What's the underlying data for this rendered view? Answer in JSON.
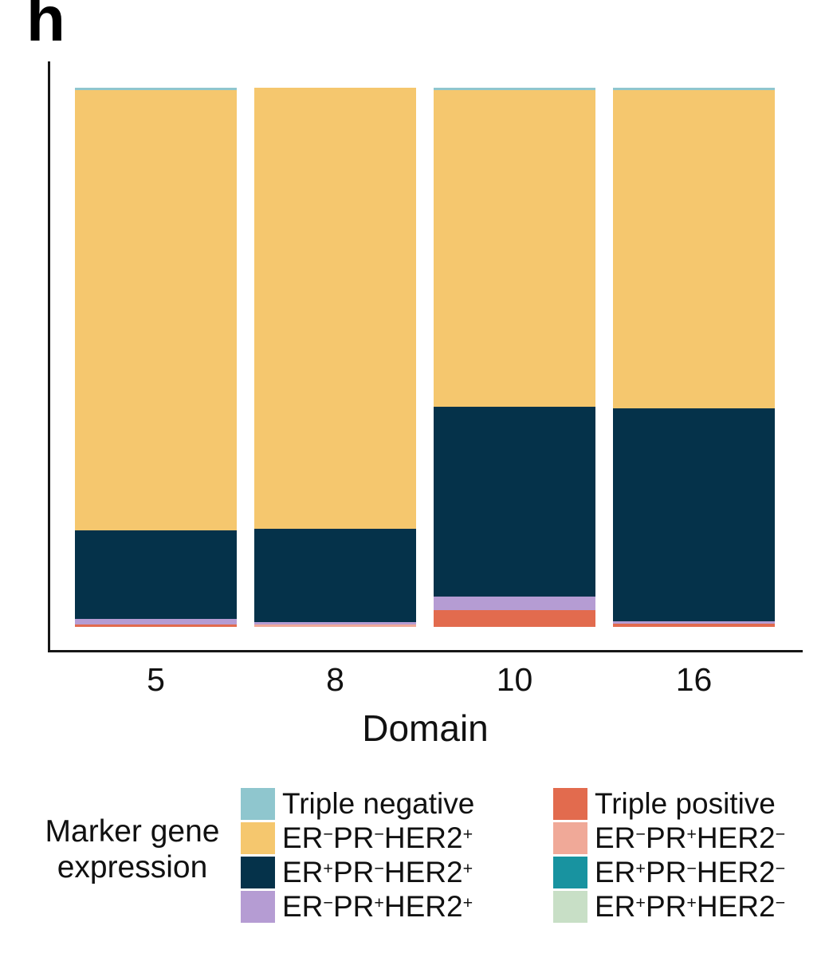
{
  "panel_label": "h",
  "colors": {
    "triple_negative": "#8FC6CE",
    "er_neg_pr_neg_her2_pos": "#F5C76E",
    "er_pos_pr_neg_her2_pos": "#05324A",
    "er_neg_pr_pos_her2_pos": "#B59CD3",
    "triple_positive": "#E26B4E",
    "er_neg_pr_pos_her2_neg": "#F0A998",
    "er_pos_pr_neg_her2_neg": "#1893A0",
    "er_pos_pr_pos_her2_neg": "#C8DFC6",
    "axis_line": "#161616"
  },
  "axis": {
    "xlabel": "Domain",
    "tick_labels": [
      "5",
      "8",
      "10",
      "16"
    ]
  },
  "legend": {
    "title_lines": [
      "Marker gene",
      "expression"
    ],
    "columns": [
      [
        {
          "key": "triple_negative",
          "parts": [
            [
              "Triple negative",
              0
            ]
          ]
        },
        {
          "key": "er_neg_pr_neg_her2_pos",
          "parts": [
            [
              "ER",
              0
            ],
            [
              "−",
              1
            ],
            [
              "PR",
              0
            ],
            [
              "−",
              1
            ],
            [
              "HER2",
              0
            ],
            [
              "+",
              1
            ]
          ]
        },
        {
          "key": "er_pos_pr_neg_her2_pos",
          "parts": [
            [
              "ER",
              0
            ],
            [
              "+",
              1
            ],
            [
              "PR",
              0
            ],
            [
              "−",
              1
            ],
            [
              "HER2",
              0
            ],
            [
              "+",
              1
            ]
          ]
        },
        {
          "key": "er_neg_pr_pos_her2_pos",
          "parts": [
            [
              "ER",
              0
            ],
            [
              "−",
              1
            ],
            [
              "PR",
              0
            ],
            [
              "+",
              1
            ],
            [
              "HER2",
              0
            ],
            [
              "+",
              1
            ]
          ]
        }
      ],
      [
        {
          "key": "triple_positive",
          "parts": [
            [
              "Triple positive",
              0
            ]
          ]
        },
        {
          "key": "er_neg_pr_pos_her2_neg",
          "parts": [
            [
              "ER",
              0
            ],
            [
              "−",
              1
            ],
            [
              "PR",
              0
            ],
            [
              "+",
              1
            ],
            [
              "HER2",
              0
            ],
            [
              "−",
              1
            ]
          ]
        },
        {
          "key": "er_pos_pr_neg_her2_neg",
          "parts": [
            [
              "ER",
              0
            ],
            [
              "+",
              1
            ],
            [
              "PR",
              0
            ],
            [
              "−",
              1
            ],
            [
              "HER2",
              0
            ],
            [
              "−",
              1
            ]
          ]
        },
        {
          "key": "er_pos_pr_pos_her2_neg",
          "parts": [
            [
              "ER",
              0
            ],
            [
              "+",
              1
            ],
            [
              "PR",
              0
            ],
            [
              "+",
              1
            ],
            [
              "HER2",
              0
            ],
            [
              "−",
              1
            ]
          ]
        }
      ]
    ]
  },
  "chart_data": {
    "type": "bar",
    "stacked": true,
    "orientation": "vertical",
    "categories": [
      "5",
      "8",
      "10",
      "16"
    ],
    "xlabel": "Domain",
    "ylabel": "",
    "ylim": [
      0,
      100
    ],
    "unit": "percent of stack",
    "legend_title": "Marker gene expression",
    "legend_entries": [
      "Triple negative",
      "ER−PR−HER2+",
      "ER+PR−HER2+",
      "ER−PR+HER2+",
      "Triple positive",
      "ER−PR+HER2−",
      "ER+PR−HER2−",
      "ER+PR+HER2−"
    ],
    "bars": [
      {
        "category": "5",
        "segments_top_to_bottom": [
          {
            "key": "triple_negative",
            "label": "Triple negative",
            "value": 0.5
          },
          {
            "key": "er_neg_pr_neg_her2_pos",
            "label": "ER−PR−HER2+",
            "value": 81.6
          },
          {
            "key": "er_pos_pr_neg_her2_pos",
            "label": "ER+PR−HER2+",
            "value": 16.4
          },
          {
            "key": "er_neg_pr_pos_her2_pos",
            "label": "ER−PR+HER2+",
            "value": 1.0
          },
          {
            "key": "triple_positive",
            "label": "Triple positive",
            "value": 0.5
          }
        ]
      },
      {
        "category": "8",
        "segments_top_to_bottom": [
          {
            "key": "er_neg_pr_neg_her2_pos",
            "label": "ER−PR−HER2+",
            "value": 81.8
          },
          {
            "key": "er_pos_pr_neg_her2_pos",
            "label": "ER+PR−HER2+",
            "value": 17.3
          },
          {
            "key": "er_neg_pr_pos_her2_pos",
            "label": "ER−PR+HER2+",
            "value": 0.45
          },
          {
            "key": "er_neg_pr_pos_her2_neg",
            "label": "ER−PR+HER2−",
            "value": 0.45
          }
        ]
      },
      {
        "category": "10",
        "segments_top_to_bottom": [
          {
            "key": "triple_negative",
            "label": "Triple negative",
            "value": 0.45
          },
          {
            "key": "er_neg_pr_neg_her2_pos",
            "label": "ER−PR−HER2+",
            "value": 58.7
          },
          {
            "key": "er_pos_pr_neg_her2_pos",
            "label": "ER+PR−HER2+",
            "value": 35.2
          },
          {
            "key": "er_neg_pr_pos_her2_pos",
            "label": "ER−PR+HER2+",
            "value": 2.5
          },
          {
            "key": "triple_positive",
            "label": "Triple positive",
            "value": 3.15
          }
        ]
      },
      {
        "category": "16",
        "segments_top_to_bottom": [
          {
            "key": "triple_negative",
            "label": "Triple negative",
            "value": 0.45
          },
          {
            "key": "er_neg_pr_neg_her2_pos",
            "label": "ER−PR−HER2+",
            "value": 59.0
          },
          {
            "key": "er_pos_pr_neg_her2_pos",
            "label": "ER+PR−HER2+",
            "value": 39.5
          },
          {
            "key": "er_neg_pr_pos_her2_pos",
            "label": "ER−PR+HER2+",
            "value": 0.5
          },
          {
            "key": "triple_positive",
            "label": "Triple positive",
            "value": 0.55
          }
        ]
      }
    ]
  }
}
